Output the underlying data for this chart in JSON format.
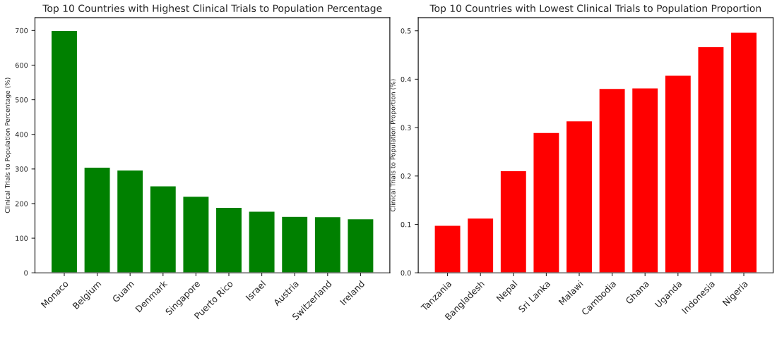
{
  "chart_data": [
    {
      "type": "bar",
      "title": "Top 10 Countries with Highest Clinical Trials to Population Percentage",
      "ylabel": "Clinical Trials to Population Percentage (%)",
      "categories": [
        "Monaco",
        "Belgium",
        "Guam",
        "Denmark",
        "Singapore",
        "Puerto Rico",
        "Israel",
        "Austria",
        "Switzerland",
        "Ireland"
      ],
      "values": [
        700,
        305,
        297,
        251,
        221,
        189,
        178,
        163,
        162,
        156
      ],
      "color": "#008000",
      "ylim": [
        0,
        737
      ],
      "yticks": [
        0,
        100,
        200,
        300,
        400,
        500,
        600,
        700
      ],
      "grid": false
    },
    {
      "type": "bar",
      "title": "Top 10 Countries with Lowest Clinical Trials to Population Proportion",
      "ylabel": "Clinical Trials to Population Proportion (%)",
      "categories": [
        "Tanzania",
        "Bangladesh",
        "Nepal",
        "Sri Lanka",
        "Malawi",
        "Cambodia",
        "Ghana",
        "Uganda",
        "Indonesia",
        "Nigeria"
      ],
      "values": [
        0.098,
        0.113,
        0.211,
        0.29,
        0.314,
        0.381,
        0.382,
        0.408,
        0.467,
        0.497
      ],
      "color": "#ff0000",
      "ylim": [
        0,
        0.527
      ],
      "yticks": [
        {
          "value": 0,
          "label": "0.0"
        },
        {
          "value": 0.1,
          "label": "0.1"
        },
        {
          "value": 0.2,
          "label": "0.2"
        },
        {
          "value": 0.3,
          "label": "0.3"
        },
        {
          "value": 0.4,
          "label": "0.4"
        },
        {
          "value": 0.5,
          "label": "0.5"
        }
      ],
      "grid": false
    }
  ]
}
